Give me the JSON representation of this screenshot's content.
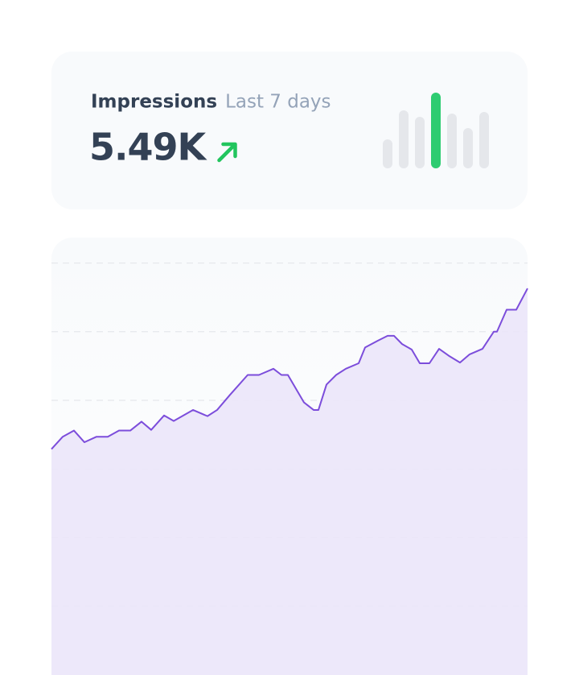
{
  "card": {
    "title": "Impressions",
    "subtitle": "Last 7 days",
    "value": "5.49K"
  },
  "chart_data": [
    {
      "type": "bar",
      "values": [
        36,
        72,
        64,
        94,
        68,
        50,
        70
      ],
      "ylim": [
        0,
        100
      ],
      "colors": [
        "#e5e7eb",
        "#e5e7eb",
        "#e5e7eb",
        "#2ecc71",
        "#e5e7eb",
        "#e5e7eb",
        "#e5e7eb"
      ]
    },
    {
      "type": "line",
      "color": "#7c4ddb",
      "fill": "#ebe6fa",
      "grid": true,
      "xlim": [
        0,
        592
      ],
      "ylim": [
        0,
        6.37
      ],
      "yticks": [
        1,
        2,
        3,
        4,
        5,
        6
      ],
      "x": [
        0,
        14,
        28,
        41,
        56,
        70,
        84,
        98,
        112,
        124,
        140,
        152,
        176,
        194,
        206,
        222,
        244,
        258,
        276,
        286,
        294,
        314,
        326,
        332,
        342,
        354,
        366,
        382,
        390,
        406,
        418,
        426,
        436,
        448,
        458,
        470,
        482,
        494,
        508,
        520,
        536,
        550,
        554,
        566,
        578,
        592
      ],
      "values": [
        3.29,
        3.47,
        3.56,
        3.39,
        3.47,
        3.47,
        3.56,
        3.56,
        3.69,
        3.57,
        3.78,
        3.7,
        3.86,
        3.77,
        3.86,
        4.08,
        4.37,
        4.37,
        4.46,
        4.37,
        4.37,
        3.97,
        3.86,
        3.86,
        4.23,
        4.37,
        4.46,
        4.54,
        4.77,
        4.87,
        4.94,
        4.94,
        4.82,
        4.74,
        4.54,
        4.54,
        4.75,
        4.65,
        4.55,
        4.67,
        4.75,
        5.0,
        5.0,
        5.32,
        5.32,
        5.63
      ]
    }
  ]
}
